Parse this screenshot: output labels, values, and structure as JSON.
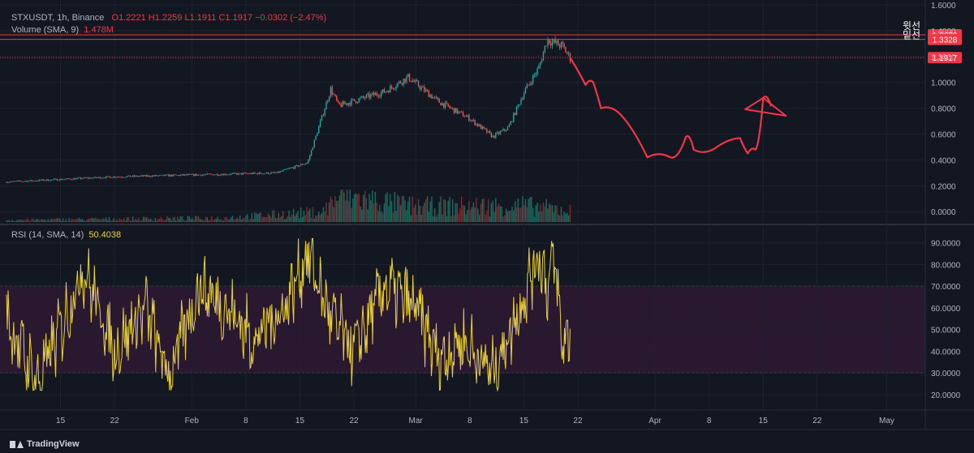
{
  "header": {
    "symbol": "STXUSDT, 1h, Binance",
    "open": "O1.2221",
    "high": "H1.2259",
    "low": "L1.1911",
    "close": "C1.1917",
    "change": "−0.0302 (−2.47%)",
    "volume_label": "Volume (SMA, 9)",
    "volume_value": "1.478M",
    "rsi_label": "RSI (14, SMA, 14)",
    "rsi_value": "50.4038"
  },
  "branding": {
    "logo_text": "TradingView"
  },
  "colors": {
    "up": "#26a69a",
    "down": "#ef5350",
    "rsi": "#e8d23b",
    "marker": "#f23645",
    "drawing": "#f23645"
  },
  "chart_data": [
    {
      "type": "line",
      "subtype": "candlestick",
      "ylim": [
        -0.08,
        1.6
      ],
      "yticks": [
        "1.6000",
        "1.4000",
        "1.2000",
        "1.0000",
        "0.8000",
        "0.6000",
        "0.4000",
        "0.2000",
        "0.0000"
      ],
      "xticks": [
        "15",
        "22",
        "Feb",
        "8",
        "15",
        "22",
        "Mar",
        "8",
        "15",
        "22",
        "Apr",
        "8",
        "15",
        "22",
        "May"
      ],
      "price_markers": [
        {
          "value": 1.3678,
          "label": "1.3678",
          "tag": "윗선"
        },
        {
          "value": 1.3328,
          "label": "1.3328",
          "tag": "밑선"
        },
        {
          "value": 1.1917,
          "label": "1.1917",
          "tag": ""
        }
      ],
      "series": [
        {
          "x": [
            "Jan 8",
            "Jan 15",
            "Jan 22",
            "Jan 29",
            "Feb 5",
            "Feb 12",
            "Feb 16",
            "Feb 19",
            "Feb 20",
            "Feb 26",
            "Feb 29",
            "Mar 4",
            "Mar 8",
            "Mar 11",
            "Mar 13",
            "Mar 15",
            "Mar 17",
            "Mar 18",
            "Mar 20",
            "Mar 21"
          ],
          "values": [
            0.23,
            0.25,
            0.27,
            0.28,
            0.29,
            0.3,
            0.38,
            0.95,
            0.82,
            0.93,
            1.04,
            0.85,
            0.72,
            0.58,
            0.65,
            0.92,
            1.12,
            1.33,
            1.28,
            1.19
          ]
        }
      ],
      "volume": {
        "x": [
          "Jan 8",
          "Jan 22",
          "Feb 5",
          "Feb 18",
          "Feb 20",
          "Mar 1",
          "Mar 15",
          "Mar 20"
        ],
        "values": [
          0.2,
          0.3,
          0.4,
          1.0,
          2.6,
          1.5,
          1.6,
          1.2
        ]
      },
      "annotation": {
        "description": "hand-drawn projection",
        "x": [
          "Mar 21",
          "Mar 23",
          "Mar 24",
          "Mar 25",
          "Mar 28",
          "Mar 31",
          "Apr 3",
          "Apr 5",
          "Apr 6",
          "Apr 9",
          "Apr 12",
          "Apr 13",
          "Apr 14",
          "Apr 15",
          "Apr 16"
        ],
        "values": [
          1.19,
          0.98,
          1.0,
          0.8,
          0.72,
          0.42,
          0.42,
          0.58,
          0.48,
          0.5,
          0.57,
          0.45,
          0.48,
          0.88,
          0.82
        ]
      }
    },
    {
      "type": "line",
      "ylim": [
        14,
        97
      ],
      "yticks": [
        "90.0000",
        "80.0000",
        "70.0000",
        "60.0000",
        "50.0000",
        "40.0000",
        "30.0000",
        "20.0000"
      ],
      "bands": [
        30,
        70
      ],
      "series": [
        {
          "x": [
            "Jan 8",
            "Jan 12",
            "Jan 15",
            "Jan 18",
            "Jan 22",
            "Jan 26",
            "Jan 29",
            "Feb 2",
            "Feb 6",
            "Feb 9",
            "Feb 13",
            "Feb 16",
            "Feb 19",
            "Feb 22",
            "Feb 26",
            "Mar 1",
            "Mar 4",
            "Mar 7",
            "Mar 11",
            "Mar 14",
            "Mar 17",
            "Mar 18",
            "Mar 19",
            "Mar 20",
            "Mar 21"
          ],
          "values": [
            55,
            25,
            50,
            78,
            40,
            60,
            28,
            70,
            58,
            45,
            60,
            85,
            55,
            40,
            70,
            60,
            36,
            45,
            30,
            56,
            85,
            70,
            82,
            42,
            50.4
          ]
        }
      ]
    }
  ]
}
